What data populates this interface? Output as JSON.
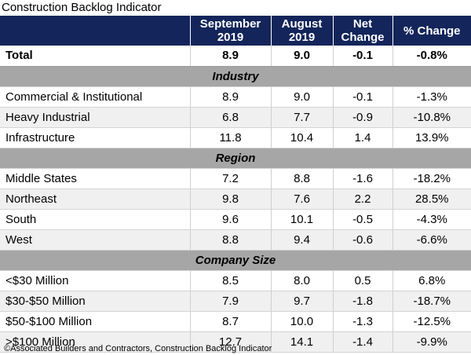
{
  "title": "Construction Backlog Indicator",
  "columns": {
    "label": "",
    "sep_line1": "September",
    "sep_line2": "2019",
    "aug_line1": "August",
    "aug_line2": "2019",
    "net_line1": "Net",
    "net_line2": "Change",
    "pct": "% Change"
  },
  "total": {
    "label": "Total",
    "sep": "8.9",
    "aug": "9.0",
    "net": "-0.1",
    "pct": "-0.8%"
  },
  "sections": [
    {
      "name": "Industry",
      "rows": [
        {
          "label": "Commercial & Institutional",
          "sep": "8.9",
          "aug": "9.0",
          "net": "-0.1",
          "pct": "-1.3%"
        },
        {
          "label": "Heavy Industrial",
          "sep": "6.8",
          "aug": "7.7",
          "net": "-0.9",
          "pct": "-10.8%"
        },
        {
          "label": "Infrastructure",
          "sep": "11.8",
          "aug": "10.4",
          "net": "1.4",
          "pct": "13.9%"
        }
      ]
    },
    {
      "name": "Region",
      "rows": [
        {
          "label": "Middle States",
          "sep": "7.2",
          "aug": "8.8",
          "net": "-1.6",
          "pct": "-18.2%"
        },
        {
          "label": "Northeast",
          "sep": "9.8",
          "aug": "7.6",
          "net": "2.2",
          "pct": "28.5%"
        },
        {
          "label": "South",
          "sep": "9.6",
          "aug": "10.1",
          "net": "-0.5",
          "pct": "-4.3%"
        },
        {
          "label": "West",
          "sep": "8.8",
          "aug": "9.4",
          "net": "-0.6",
          "pct": "-6.6%"
        }
      ]
    },
    {
      "name": "Company Size",
      "rows": [
        {
          "label": "<$30 Million",
          "sep": "8.5",
          "aug": "8.0",
          "net": "0.5",
          "pct": "6.8%"
        },
        {
          "label": "$30-$50 Million",
          "sep": "7.9",
          "aug": "9.7",
          "net": "-1.8",
          "pct": "-18.7%"
        },
        {
          "label": "$50-$100 Million",
          "sep": "8.7",
          "aug": "10.0",
          "net": "-1.3",
          "pct": "-12.5%"
        },
        {
          "label": ">$100 Million",
          "sep": "12.7",
          "aug": "14.1",
          "net": "-1.4",
          "pct": "-9.9%"
        }
      ]
    }
  ],
  "source": "©Associated Builders and Contractors, Construction Backlog Indicator"
}
